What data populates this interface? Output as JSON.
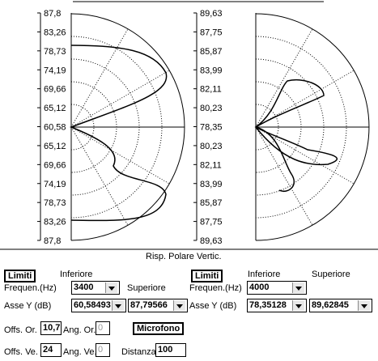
{
  "plots": [
    {
      "labels": [
        "87,8",
        "83,26",
        "78,73",
        "74,19",
        "69,66",
        "65,12",
        "60,58",
        "65,12",
        "69,66",
        "74,19",
        "78,73",
        "83,26",
        "87,8"
      ]
    },
    {
      "labels": [
        "89,63",
        "87,75",
        "85,87",
        "83,99",
        "82,11",
        "80,23",
        "78,35",
        "80,23",
        "82,11",
        "83,99",
        "85,87",
        "87,75",
        "89,63"
      ]
    }
  ],
  "caption": "Risp. Polare Vertic.",
  "left": {
    "limits": "Limiti",
    "lower": "Inferiore",
    "upper": "Superiore",
    "freq_label": "Frequen.(Hz)",
    "freq": "3400",
    "axis_label": "Asse Y  (dB)",
    "y_lower": "60,58493",
    "y_upper": "87,79566"
  },
  "right": {
    "limits": "Limiti",
    "lower": "Inferiore",
    "upper": "Superiore",
    "freq_label": "Frequen.(Hz)",
    "freq": "4000",
    "axis_label": "Asse Y  (dB)",
    "y_lower": "78,35128",
    "y_upper": "89,62845"
  },
  "offsets": {
    "offs_or_label": "Offs. Or.",
    "offs_or": "10,7",
    "ang_or_label": "Ang. Or.",
    "ang_or": "0",
    "mic": "Microfono",
    "offs_ve_label": "Offs. Ve.",
    "offs_ve": "24",
    "ang_ve_label": "Ang. Ve.",
    "ang_ve": "0",
    "dist_label": "Distanza",
    "dist": "100"
  }
}
